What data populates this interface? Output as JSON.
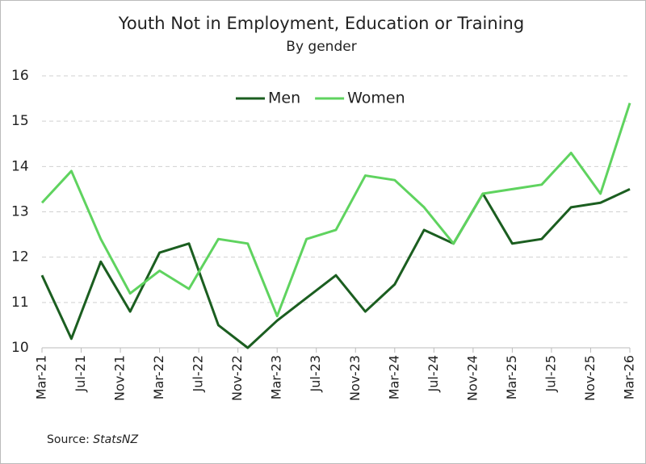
{
  "chart_data": {
    "type": "line",
    "title": "Youth Not in Employment, Education or Training",
    "subtitle": "By gender",
    "source_label": "Source:",
    "source": "StatsNZ",
    "x": [
      0,
      3,
      6,
      9,
      12,
      15,
      18,
      21,
      24,
      27,
      30,
      33,
      36,
      39,
      42,
      45,
      48,
      51,
      54,
      57,
      60
    ],
    "xlim": [
      0,
      60
    ],
    "xticks": [
      {
        "value": 0,
        "label": "Mar-21"
      },
      {
        "value": 4,
        "label": "Jul-21"
      },
      {
        "value": 8,
        "label": "Nov-21"
      },
      {
        "value": 12,
        "label": "Mar-22"
      },
      {
        "value": 16,
        "label": "Jul-22"
      },
      {
        "value": 20,
        "label": "Nov-22"
      },
      {
        "value": 24,
        "label": "Mar-23"
      },
      {
        "value": 28,
        "label": "Jul-23"
      },
      {
        "value": 32,
        "label": "Nov-23"
      },
      {
        "value": 36,
        "label": "Mar-24"
      },
      {
        "value": 40,
        "label": "Jul-24"
      },
      {
        "value": 44,
        "label": "Nov-24"
      },
      {
        "value": 48,
        "label": "Mar-25"
      },
      {
        "value": 52,
        "label": "Jul-25"
      },
      {
        "value": 56,
        "label": "Nov-25"
      },
      {
        "value": 60,
        "label": "Mar-26"
      }
    ],
    "ylim": [
      10,
      16
    ],
    "yticks": [
      10,
      11,
      12,
      13,
      14,
      15,
      16
    ],
    "grid": true,
    "legend": "top",
    "series": [
      {
        "name": "Men",
        "color": "#1b5e20",
        "values": [
          11.6,
          10.2,
          11.9,
          10.8,
          12.1,
          12.3,
          10.5,
          10.0,
          10.6,
          11.1,
          11.6,
          10.8,
          11.4,
          12.6,
          12.3,
          13.4,
          12.3,
          12.4,
          13.1,
          13.2,
          13.5
        ]
      },
      {
        "name": "Women",
        "color": "#5fd35f",
        "values": [
          13.2,
          13.9,
          12.4,
          11.2,
          11.7,
          11.3,
          12.4,
          12.3,
          10.7,
          12.4,
          12.6,
          13.8,
          13.7,
          13.1,
          12.3,
          13.4,
          13.5,
          13.6,
          14.3,
          13.4,
          15.4
        ]
      }
    ]
  }
}
